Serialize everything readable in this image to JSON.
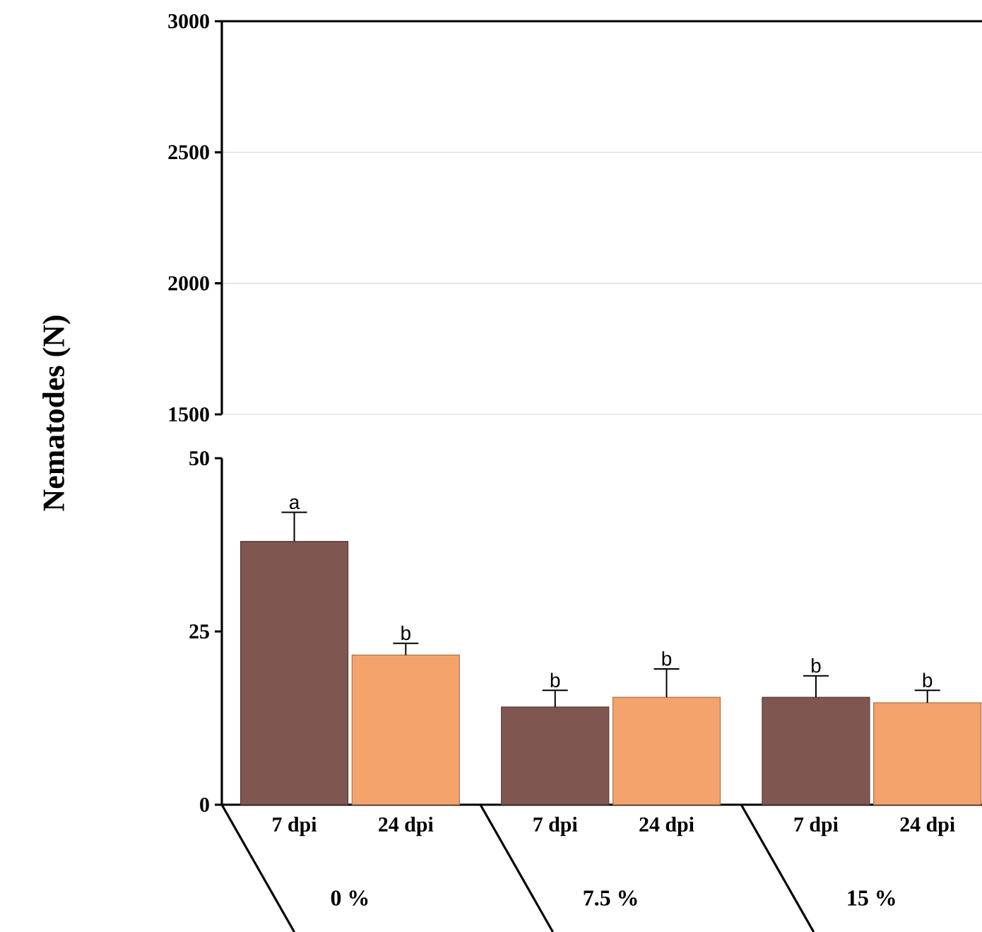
{
  "chart_data": [
    {
      "type": "bar",
      "categories": [
        null,
        null,
        null,
        null,
        null,
        null
      ],
      "values": [
        null,
        null,
        null,
        null,
        null,
        null
      ],
      "ylim": [
        1500,
        3000
      ],
      "yticks": [
        1500,
        2000,
        2500,
        3000
      ],
      "grid": "y",
      "tick_labels": "y"
    },
    {
      "type": "bar",
      "ylabel": "Nematodes (N)",
      "categories": [
        "7 dpi",
        "24 dpi",
        "7 dpi",
        "24 dpi",
        "7 dpi",
        "24 dpi"
      ],
      "values": [
        38,
        21.6,
        14.1,
        15.5,
        15.5,
        14.7
      ],
      "errors": [
        [
          38,
          42.2
        ],
        [
          21.6,
          23.3
        ],
        [
          14.1,
          16.5
        ],
        [
          15.5,
          19.6
        ],
        [
          15.5,
          18.6
        ],
        [
          14.7,
          16.5
        ]
      ],
      "colors": [
        "#7f5650",
        "#f4a36c",
        "#7f5650",
        "#f4a36c",
        "#7f5650",
        "#f4a36c"
      ],
      "ylim": [
        0,
        50
      ],
      "yticks": [
        0,
        25,
        50
      ],
      "annotations": [
        "a",
        "b",
        "b",
        "b",
        "b",
        "b",
        "0 %",
        "7.5 %",
        "15 %"
      ]
    }
  ]
}
